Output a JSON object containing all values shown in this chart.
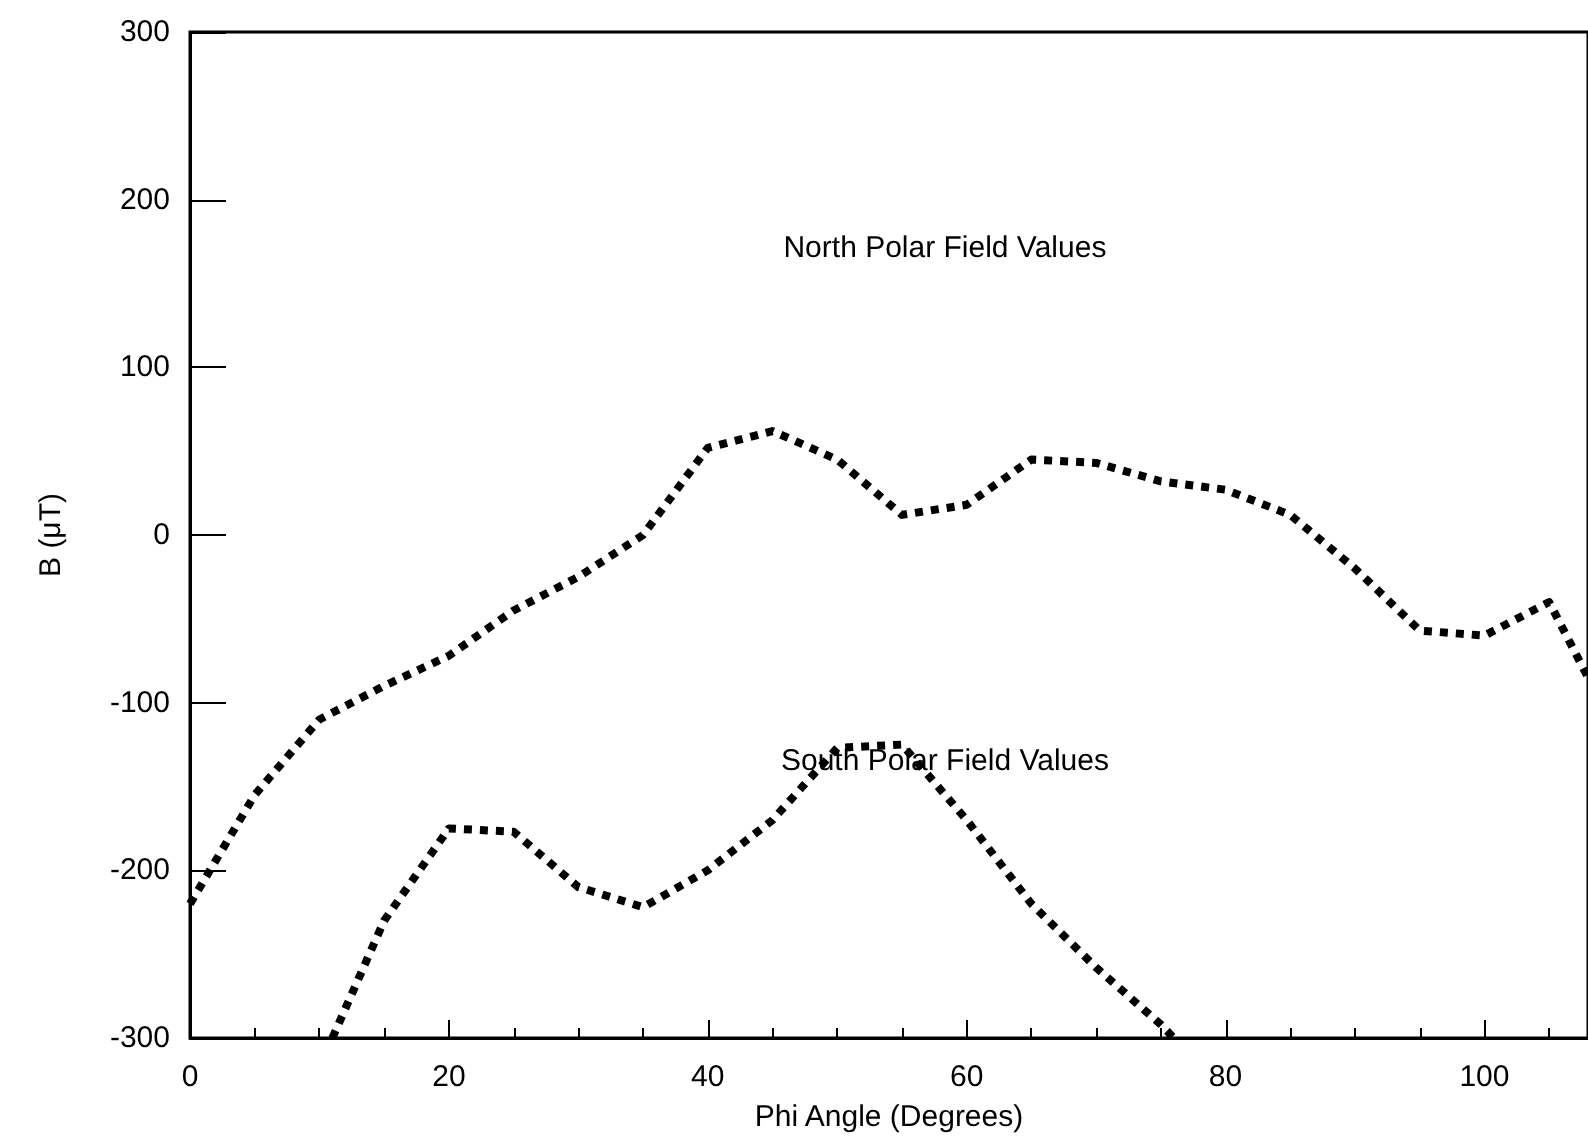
{
  "chart_data": {
    "type": "line",
    "xlabel": "Phi Angle (Degrees)",
    "ylabel": "B (μT)",
    "xlim": [
      0,
      108
    ],
    "xticks": [
      0,
      20,
      40,
      60,
      80,
      100
    ],
    "ylim": [
      -300,
      300
    ],
    "yticks": [
      -300,
      -200,
      -100,
      0,
      100,
      200,
      300
    ],
    "grid": false,
    "marker": "none",
    "line_style": "dotted",
    "series": [
      {
        "color": "#000000",
        "x": [
          0,
          5,
          10,
          15,
          20,
          25,
          30,
          35,
          40,
          45,
          50,
          55,
          60,
          65,
          70,
          75,
          80,
          85,
          90,
          95,
          100,
          105,
          108
        ],
        "values": [
          -220,
          -155,
          -110,
          -90,
          -72,
          -45,
          -25,
          0,
          52,
          62,
          45,
          12,
          18,
          45,
          43,
          32,
          27,
          12,
          -20,
          -57,
          -60,
          -40,
          -85
        ]
      },
      {
        "color": "#000000",
        "x": [
          11,
          15,
          20,
          25,
          30,
          35,
          40,
          45,
          50,
          55,
          60,
          65,
          70,
          75,
          76
        ],
        "values": [
          -300,
          -230,
          -175,
          -177,
          -210,
          -222,
          -200,
          -170,
          -127,
          -125,
          -170,
          -220,
          -258,
          -292,
          -300
        ]
      }
    ],
    "annotations": [
      "North Polar Field Values",
      "South Polar Field Values"
    ]
  }
}
